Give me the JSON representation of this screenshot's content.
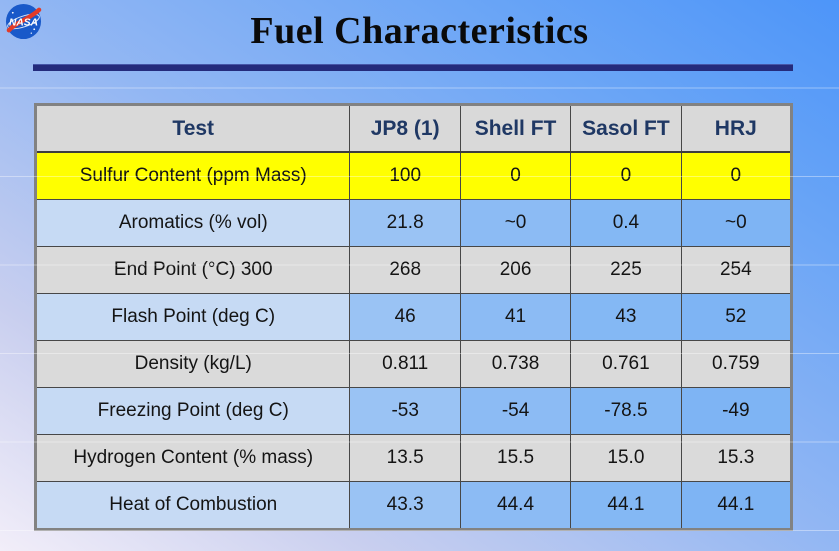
{
  "slide": {
    "title": "Fuel Characteristics"
  },
  "logo": {
    "icon": "nasa-meatball-icon",
    "label": "NASA"
  },
  "chart_data": {
    "type": "table",
    "title": "Fuel Characteristics",
    "columns": [
      "Test",
      "JP8 (1)",
      "Shell FT",
      "Sasol FT",
      "HRJ"
    ],
    "rows": [
      {
        "label": "Sulfur Content (ppm Mass)",
        "values": [
          "100",
          "0",
          "0",
          "0"
        ],
        "highlight": true
      },
      {
        "label": "Aromatics (% vol)",
        "values": [
          "21.8",
          "~0",
          "0.4",
          "~0"
        ]
      },
      {
        "label": "End Point (°C) 300",
        "values": [
          "268",
          "206",
          "225",
          "254"
        ]
      },
      {
        "label": "Flash Point (deg C)",
        "values": [
          "46",
          "41",
          "43",
          "52"
        ]
      },
      {
        "label": "Density (kg/L)",
        "values": [
          "0.811",
          "0.738",
          "0.761",
          "0.759"
        ]
      },
      {
        "label": "Freezing Point (deg C)",
        "values": [
          "-53",
          "-54",
          "-78.5",
          "-49"
        ]
      },
      {
        "label": "Hydrogen Content (% mass)",
        "values": [
          "13.5",
          "15.5",
          "15.0",
          "15.3"
        ]
      },
      {
        "label": "Heat of Combustion",
        "values": [
          "43.3",
          "44.4",
          "44.1",
          "44.1"
        ]
      }
    ]
  },
  "colors": {
    "highlight_row": "#ffff00",
    "header_bg": "#d9d9d9",
    "header_text": "#1f3864",
    "divider": "#242b7c",
    "blue_row": "#84b8f4",
    "gray_row": "#dadada",
    "nasa_blue": "#1959c9",
    "nasa_red": "#e23b28"
  }
}
